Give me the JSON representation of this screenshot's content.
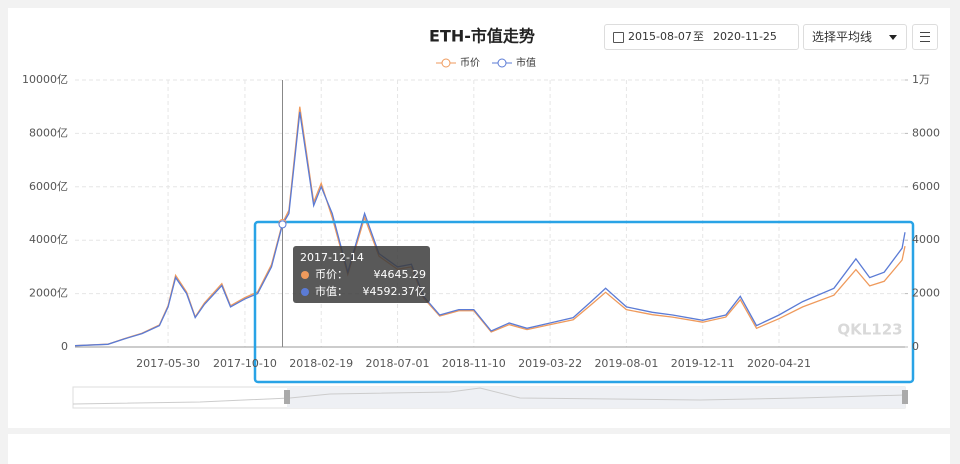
{
  "header": {
    "date_from": "2015-08-07",
    "date_sep": "至",
    "date_to": "2020-11-25",
    "select": "选择平均线",
    "watermark": "QKL123"
  },
  "chart_data": {
    "type": "line",
    "title": "ETH-市值走势",
    "x": [
      "2016-12-20",
      "2017-02-15",
      "2017-03-15",
      "2017-04-15",
      "2017-05-15",
      "2017-05-30",
      "2017-06-12",
      "2017-07-01",
      "2017-07-16",
      "2017-08-01",
      "2017-08-31",
      "2017-09-15",
      "2017-10-10",
      "2017-11-01",
      "2017-11-25",
      "2017-12-14",
      "2017-12-25",
      "2018-01-13",
      "2018-02-06",
      "2018-02-19",
      "2018-03-10",
      "2018-04-06",
      "2018-05-05",
      "2018-05-30",
      "2018-07-01",
      "2018-07-25",
      "2018-08-15",
      "2018-09-12",
      "2018-10-15",
      "2018-11-10",
      "2018-12-10",
      "2019-01-10",
      "2019-02-10",
      "2019-03-22",
      "2019-05-01",
      "2019-06-01",
      "2019-06-26",
      "2019-08-01",
      "2019-09-15",
      "2019-10-20",
      "2019-12-11",
      "2020-01-20",
      "2020-02-14",
      "2020-03-13",
      "2020-04-21",
      "2020-06-01",
      "2020-07-25",
      "2020-09-01",
      "2020-09-25",
      "2020-10-20",
      "2020-11-20",
      "2020-11-25"
    ],
    "xlim": [
      "2016-12-20",
      "2020-11-25"
    ],
    "xticks": [
      "2017-05-30",
      "2017-10-10",
      "2018-02-19",
      "2018-07-01",
      "2018-11-10",
      "2019-03-22",
      "2019-08-01",
      "2019-12-11",
      "2020-04-21"
    ],
    "series": [
      {
        "name": "币价",
        "color": "#ef9a5c",
        "axis": "y2",
        "values": [
          52,
          103,
          310,
          515,
          825,
          1545,
          2680,
          2060,
          1130,
          1650,
          2370,
          1545,
          1850,
          2060,
          3090,
          4645.29,
          5120,
          9000,
          5420,
          6130,
          4850,
          2720,
          4850,
          3400,
          2910,
          3000,
          1840,
          1160,
          1360,
          1360,
          560,
          840,
          650,
          840,
          1020,
          1580,
          2050,
          1400,
          1210,
          1120,
          930,
          1120,
          1770,
          700,
          1060,
          1500,
          1940,
          2900,
          2290,
          2460,
          3260,
          3780
        ]
      },
      {
        "name": "市值",
        "color": "#5b7bd5",
        "values": [
          50,
          100,
          300,
          500,
          800,
          1500,
          2600,
          2000,
          1100,
          1600,
          2300,
          1500,
          1800,
          2000,
          3000,
          4592.37,
          5000,
          8800,
          5300,
          6000,
          5000,
          2800,
          5000,
          3500,
          3000,
          3100,
          1900,
          1200,
          1400,
          1400,
          600,
          900,
          700,
          900,
          1100,
          1700,
          2200,
          1500,
          1300,
          1200,
          1000,
          1200,
          1900,
          800,
          1200,
          1700,
          2200,
          3300,
          2600,
          2800,
          3700,
          4300
        ]
      }
    ],
    "ylim": [
      0,
      10000
    ],
    "yticks": [
      0,
      {
        "value": 2000,
        "label": "2000亿"
      },
      {
        "value": 4000,
        "label": "4000亿"
      },
      {
        "value": 6000,
        "label": "6000亿"
      },
      {
        "value": 8000,
        "label": "8000亿"
      },
      {
        "value": 10000,
        "label": "10000亿"
      }
    ],
    "y2lim": [
      0,
      10000
    ],
    "y2ticks": [
      0,
      2000,
      4000,
      6000,
      8000,
      {
        "value": 10000,
        "label": "1万"
      }
    ],
    "grid": true,
    "tooltip": {
      "x": "2017-12-14",
      "rows": [
        {
          "label": "币价：",
          "value": 4645.29,
          "value_label": "¥4645.29"
        },
        {
          "label": "市值：",
          "value": 4592.37,
          "value_label": "¥4592.37亿"
        }
      ]
    }
  }
}
